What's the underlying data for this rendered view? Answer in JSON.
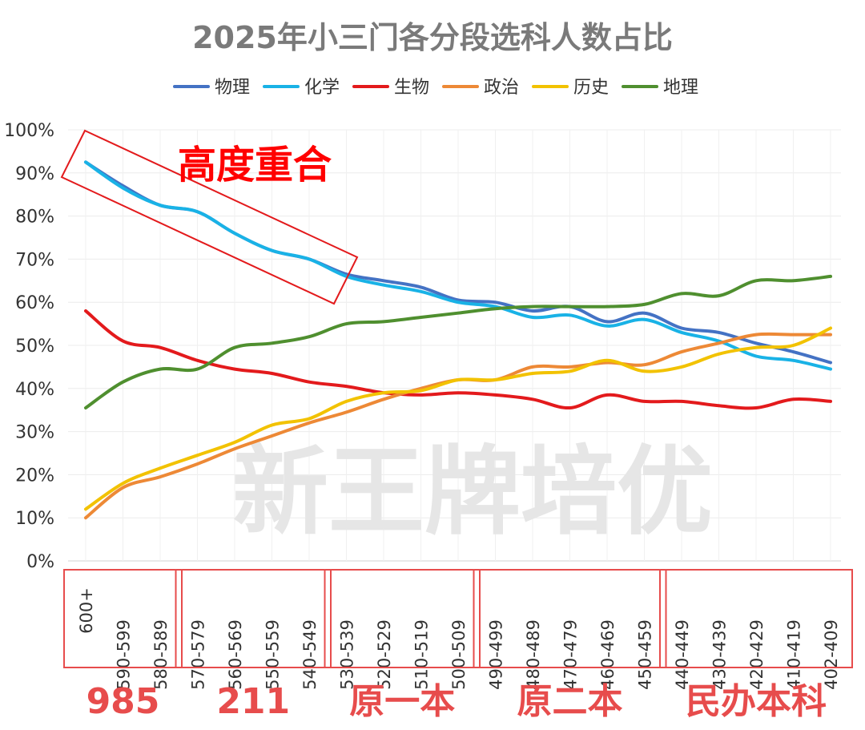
{
  "chart_data": {
    "type": "line",
    "title": "2025年小三门各分段选科人数占比",
    "legend_position": "top",
    "grid": true,
    "yticks": [
      "0%",
      "10%",
      "20%",
      "30%",
      "40%",
      "50%",
      "60%",
      "70%",
      "80%",
      "90%",
      "100%"
    ],
    "ylim": [
      0,
      100
    ],
    "categories": [
      "600+",
      "590-599",
      "580-589",
      "570-579",
      "560-569",
      "550-559",
      "540-549",
      "530-539",
      "520-529",
      "510-519",
      "500-509",
      "490-499",
      "480-489",
      "470-479",
      "460-469",
      "450-459",
      "440-449",
      "430-439",
      "420-429",
      "410-419",
      "402-409"
    ],
    "series": [
      {
        "name": "物理",
        "color": "#4472c4",
        "values": [
          92.5,
          87,
          82.5,
          81,
          76,
          72,
          70,
          66.5,
          65,
          63.5,
          60.5,
          60,
          58,
          59,
          55.5,
          57.5,
          54,
          53,
          50.5,
          48.5,
          46
        ]
      },
      {
        "name": "化学",
        "color": "#19b2e6",
        "values": [
          92.5,
          86.5,
          82.5,
          81,
          76,
          72,
          70,
          66,
          64,
          62.5,
          60,
          59,
          56.5,
          57,
          54.5,
          56,
          53,
          51,
          47.5,
          46.5,
          44.5
        ]
      },
      {
        "name": "生物",
        "color": "#e31a1c",
        "values": [
          58,
          51,
          49.5,
          46.5,
          44.5,
          43.5,
          41.5,
          40.5,
          39,
          38.5,
          39,
          38.5,
          37.5,
          35.5,
          38.5,
          37,
          37,
          36,
          35.5,
          37.5,
          37
        ]
      },
      {
        "name": "政治",
        "color": "#ed8936",
        "values": [
          10,
          17,
          19.5,
          22.5,
          26,
          29,
          32,
          34.5,
          37.5,
          40,
          42,
          42,
          45,
          45,
          46,
          45.5,
          48.5,
          50.5,
          52.5,
          52.5,
          52.5
        ]
      },
      {
        "name": "历史",
        "color": "#f2c200",
        "values": [
          12,
          18,
          21.5,
          24.5,
          27.5,
          31.5,
          33,
          37,
          39,
          39.5,
          42,
          42,
          43.5,
          44,
          46.5,
          44,
          45,
          48,
          49.5,
          50,
          54
        ]
      },
      {
        "name": "地理",
        "color": "#4f8f2f",
        "values": [
          35.5,
          41.5,
          44.5,
          44.5,
          49.5,
          50.5,
          52,
          55,
          55.5,
          56.5,
          57.5,
          58.5,
          59,
          59,
          59,
          59.5,
          62,
          61.5,
          65,
          65,
          66
        ]
      }
    ],
    "groups": [
      {
        "label": "985",
        "categories": [
          "600+",
          "590-599",
          "580-589"
        ]
      },
      {
        "label": "211",
        "categories": [
          "570-579",
          "560-569",
          "550-559",
          "540-549"
        ]
      },
      {
        "label": "原一本",
        "categories": [
          "530-539",
          "520-529",
          "510-519",
          "500-509"
        ]
      },
      {
        "label": "原二本",
        "categories": [
          "490-499",
          "480-489",
          "470-479",
          "460-469",
          "450-459"
        ]
      },
      {
        "label": "民办本科",
        "categories": [
          "440-449",
          "430-439",
          "420-429",
          "410-419",
          "402-409"
        ]
      }
    ],
    "annotation": "高度重合",
    "watermark": "新王牌培优"
  }
}
